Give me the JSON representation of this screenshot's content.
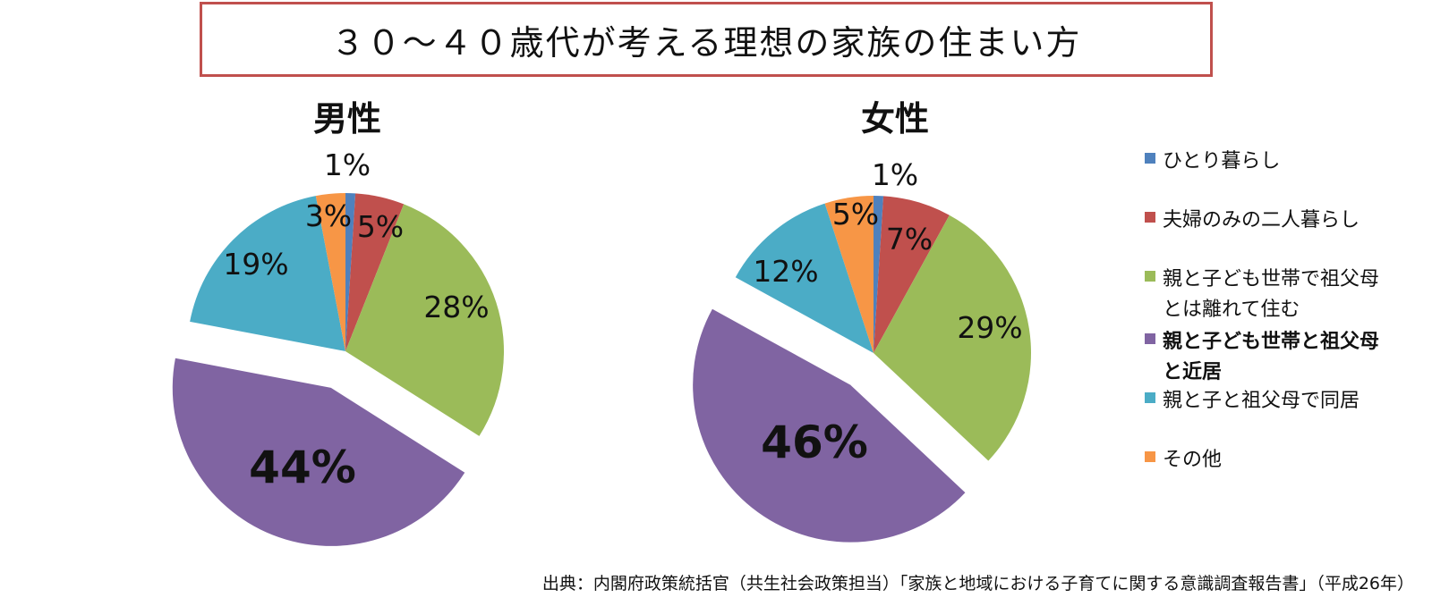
{
  "title": "３０～４０歳代が考える理想の家族の住まい方",
  "colors": {
    "title_border": "#c0504d",
    "series": [
      "#4f81bd",
      "#c0504d",
      "#9bbb59",
      "#8064a2",
      "#4bacc6",
      "#f79646"
    ]
  },
  "chart_data": [
    {
      "type": "pie",
      "title": "男性",
      "categories": [
        "ひとり暮らし",
        "夫婦のみの二人暮らし",
        "親と子ども世帯で祖父母とは離れて住む",
        "親と子ども世帯と祖父母と近居",
        "親と子と祖父母で同居",
        "その他"
      ],
      "values": [
        1,
        5,
        28,
        44,
        19,
        3
      ],
      "labels": [
        "1%",
        "5%",
        "28%",
        "44%",
        "19%",
        "3%"
      ],
      "exploded": "親と子ども世帯と祖父母と近居",
      "legend": "right"
    },
    {
      "type": "pie",
      "title": "女性",
      "categories": [
        "ひとり暮らし",
        "夫婦のみの二人暮らし",
        "親と子ども世帯で祖父母とは離れて住む",
        "親と子ども世帯と祖父母と近居",
        "親と子と祖父母で同居",
        "その他"
      ],
      "values": [
        1,
        7,
        29,
        46,
        12,
        5
      ],
      "labels": [
        "1%",
        "7%",
        "29%",
        "46%",
        "12%",
        "5%"
      ],
      "exploded": "親と子ども世帯と祖父母と近居",
      "legend": "right"
    }
  ],
  "legend": [
    {
      "label": "ひとり暮らし",
      "bold": false
    },
    {
      "label": "夫婦のみの二人暮らし",
      "bold": false
    },
    {
      "label": "親と子ども世帯で祖父母\nとは離れて住む",
      "bold": false
    },
    {
      "label": "親と子ども世帯と祖父母\nと近居",
      "bold": true
    },
    {
      "label": "親と子と祖父母で同居",
      "bold": false
    },
    {
      "label": "その他",
      "bold": false
    }
  ],
  "source": "出典：内閣府政策統括官（共生社会政策担当）「家族と地域における子育てに関する意識調査報告書」（平成26年）"
}
